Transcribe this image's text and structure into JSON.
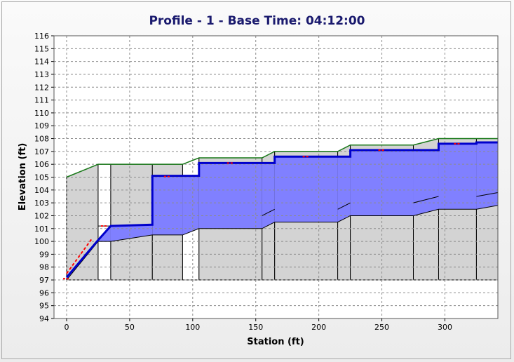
{
  "chart_data": {
    "type": "area",
    "title": "Profile - 1 - Base Time: 04:12:00",
    "xlabel": "Station (ft)",
    "ylabel": "Elevation (ft)",
    "xlim": [
      -10,
      342
    ],
    "ylim": [
      94,
      116
    ],
    "xticks": [
      0,
      50,
      100,
      150,
      200,
      250,
      300
    ],
    "yticks": [
      94,
      95,
      96,
      97,
      98,
      99,
      100,
      101,
      102,
      103,
      104,
      105,
      106,
      107,
      108,
      109,
      110,
      111,
      112,
      113,
      114,
      115,
      116
    ],
    "grid": true,
    "segments": [
      {
        "x0": 0,
        "x1": 25,
        "bed0": 97,
        "bed1": 100,
        "wse0": 97.2,
        "wse1": 100.1,
        "top0": 105,
        "top1": 106
      },
      {
        "x0": 25,
        "x1": 35,
        "bed0": 100,
        "bed1": 100,
        "wse0": 100.1,
        "wse1": 101.2,
        "top0": 106,
        "top1": 106
      },
      {
        "x0": 35,
        "x1": 68,
        "bed0": 100,
        "bed1": 100.5,
        "wse0": 101.2,
        "wse1": 101.3,
        "top0": 106,
        "top1": 106
      },
      {
        "x0": 68,
        "x1": 92,
        "bed0": 100.5,
        "bed1": 100.5,
        "wse0": 105.1,
        "wse1": 105.1,
        "top0": 106,
        "top1": 106
      },
      {
        "x0": 92,
        "x1": 105,
        "bed0": 100.5,
        "bed1": 101,
        "wse0": 105.1,
        "wse1": 105.1,
        "top0": 106,
        "top1": 106.5
      },
      {
        "x0": 105,
        "x1": 155,
        "bed0": 101,
        "bed1": 101,
        "wse0": 106.1,
        "wse1": 106.1,
        "top0": 106.5,
        "top1": 106.5
      },
      {
        "x0": 155,
        "x1": 165,
        "bed0": 101,
        "bed1": 101.5,
        "wse0": 106.1,
        "wse1": 106.1,
        "top0": 106.5,
        "top1": 107
      },
      {
        "x0": 165,
        "x1": 215,
        "bed0": 101.5,
        "bed1": 101.5,
        "wse0": 106.6,
        "wse1": 106.6,
        "top0": 107,
        "top1": 107
      },
      {
        "x0": 215,
        "x1": 225,
        "bed0": 101.5,
        "bed1": 102,
        "wse0": 106.6,
        "wse1": 106.6,
        "top0": 107,
        "top1": 107.5
      },
      {
        "x0": 225,
        "x1": 275,
        "bed0": 102,
        "bed1": 102,
        "wse0": 107.1,
        "wse1": 107.1,
        "top0": 107.5,
        "top1": 107.5
      },
      {
        "x0": 275,
        "x1": 295,
        "bed0": 102,
        "bed1": 102.5,
        "wse0": 107.1,
        "wse1": 107.1,
        "top0": 107.5,
        "top1": 108
      },
      {
        "x0": 295,
        "x1": 325,
        "bed0": 102.5,
        "bed1": 102.5,
        "wse0": 107.6,
        "wse1": 107.6,
        "top0": 108,
        "top1": 108
      },
      {
        "x0": 325,
        "x1": 342,
        "bed0": 102.5,
        "bed1": 102.8,
        "wse0": 107.7,
        "wse1": 107.7,
        "top0": 108,
        "top1": 108
      }
    ],
    "culvert_crown": [
      {
        "x": [
          25,
          35
        ],
        "y": [
          101.2,
          101.2
        ]
      },
      {
        "x": [
          155,
          165
        ],
        "y": [
          102,
          102.5
        ]
      },
      {
        "x": [
          215,
          225
        ],
        "y": [
          102.5,
          103
        ]
      },
      {
        "x": [
          275,
          295
        ],
        "y": [
          103,
          103.5
        ]
      },
      {
        "x": [
          325,
          342
        ],
        "y": [
          103.5,
          103.8
        ]
      }
    ],
    "critical_depth_marks": [
      {
        "x": 0,
        "y": 97.1
      },
      {
        "x": 30,
        "y": 101.2
      },
      {
        "x": 80,
        "y": 105.05
      },
      {
        "x": 130,
        "y": 106.1
      },
      {
        "x": 190,
        "y": 106.6
      },
      {
        "x": 250,
        "y": 107.1
      },
      {
        "x": 310,
        "y": 107.6
      }
    ],
    "colors": {
      "water": "#8080ff",
      "wse_line": "#0000cc",
      "ground": "#d3d3d3",
      "top_line": "#1a7a1a",
      "critical": "#ff0000",
      "grid": "#8c8c8c"
    }
  }
}
